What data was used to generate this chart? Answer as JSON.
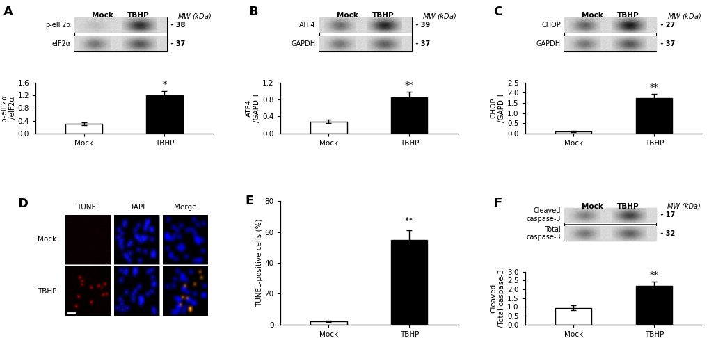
{
  "panel_A": {
    "categories": [
      "Mock",
      "TBHP"
    ],
    "values": [
      0.3,
      1.2
    ],
    "errors": [
      0.05,
      0.13
    ],
    "ylabel": "p-eIF2α\n/eIF2α",
    "ylim": [
      0,
      1.6
    ],
    "yticks": [
      0,
      0.4,
      0.8,
      1.2,
      1.6
    ],
    "colors": [
      "white",
      "black"
    ],
    "sig_text": "*",
    "label": "A",
    "wb_labels": [
      "p-eIF2α",
      "eIF2α"
    ],
    "mw_vals": [
      " - 38",
      " - 37"
    ],
    "wb_mock_intensity": [
      0.15,
      0.55
    ],
    "wb_tbhp_intensity": [
      0.85,
      0.65
    ]
  },
  "panel_B": {
    "categories": [
      "Mock",
      "TBHP"
    ],
    "values": [
      0.28,
      0.85
    ],
    "errors": [
      0.04,
      0.13
    ],
    "ylabel": "ATF4\n/GAPDH",
    "ylim": [
      0,
      1.2
    ],
    "yticks": [
      0,
      0.4,
      0.8,
      1.2
    ],
    "colors": [
      "white",
      "black"
    ],
    "sig_text": "**",
    "label": "B",
    "wb_labels": [
      "ATF4",
      "GAPDH"
    ],
    "mw_vals": [
      " - 39",
      " - 37"
    ],
    "wb_mock_intensity": [
      0.6,
      0.55
    ],
    "wb_tbhp_intensity": [
      0.9,
      0.6
    ]
  },
  "panel_C": {
    "categories": [
      "Mock",
      "TBHP"
    ],
    "values": [
      0.1,
      1.72
    ],
    "errors": [
      0.04,
      0.22
    ],
    "ylabel": "CHOP\n/GAPDH",
    "ylim": [
      0,
      2.5
    ],
    "yticks": [
      0,
      0.5,
      1.0,
      1.5,
      2.0,
      2.5
    ],
    "colors": [
      "white",
      "black"
    ],
    "sig_text": "**",
    "label": "C",
    "wb_labels": [
      "CHOP",
      "GAPDH"
    ],
    "mw_vals": [
      " - 27",
      " - 37"
    ],
    "wb_mock_intensity": [
      0.65,
      0.55
    ],
    "wb_tbhp_intensity": [
      0.95,
      0.65
    ]
  },
  "panel_E": {
    "categories": [
      "Mock",
      "TBHP"
    ],
    "values": [
      2.0,
      55.0
    ],
    "errors": [
      0.5,
      6.0
    ],
    "ylabel": "TUNEL-positive cells (%)",
    "ylim": [
      0,
      80
    ],
    "yticks": [
      0,
      20,
      40,
      60,
      80
    ],
    "colors": [
      "white",
      "black"
    ],
    "sig_text": "**",
    "label": "E"
  },
  "panel_F": {
    "categories": [
      "Mock",
      "TBHP"
    ],
    "values": [
      0.95,
      2.2
    ],
    "errors": [
      0.15,
      0.22
    ],
    "ylabel": "Cleaved\n/Total caspase-3",
    "ylim": [
      0,
      3.0
    ],
    "yticks": [
      0,
      0.5,
      1.0,
      1.5,
      2.0,
      2.5,
      3.0
    ],
    "colors": [
      "white",
      "black"
    ],
    "sig_text": "**",
    "label": "F",
    "wb_labels": [
      "Cleaved\ncaspase-3",
      "Total\ncaspase-3"
    ],
    "mw_vals": [
      " - 17",
      " - 32"
    ],
    "wb_mock_intensity": [
      0.5,
      0.55
    ],
    "wb_tbhp_intensity": [
      0.75,
      0.6
    ]
  },
  "bar_width": 0.45,
  "bg_color": "#ffffff",
  "edge_color": "#000000",
  "micro_col_headers": [
    "TUNEL",
    "DAPI",
    "Merge"
  ],
  "micro_row_labels": [
    "Mock",
    "TBHP"
  ]
}
